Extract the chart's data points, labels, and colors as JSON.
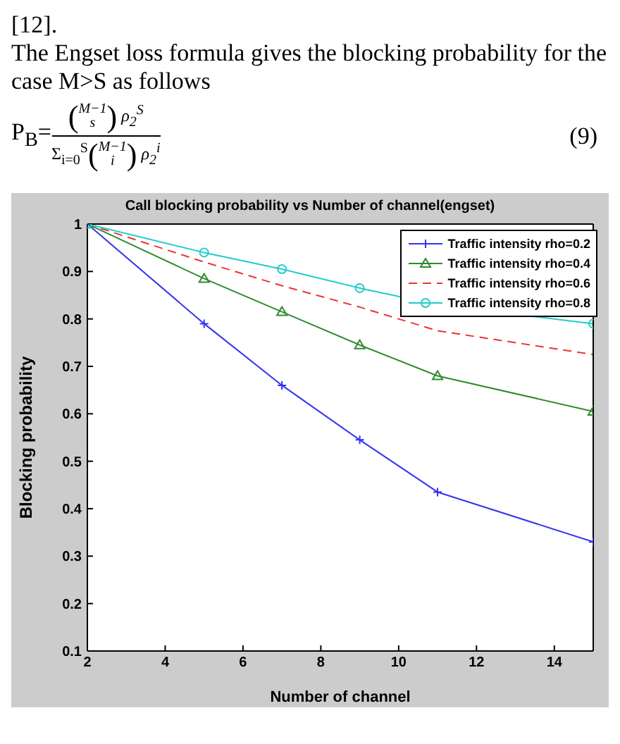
{
  "chart_data": {
    "type": "line",
    "title": "Call blocking probability vs Number of channel(engset)",
    "xlabel": "Number of channel",
    "ylabel": "Blocking probability",
    "annotations": [
      "[12].",
      "The Engset loss formula gives the blocking probability for the case M>S as follows",
      "P$_{B}$=",
      "(",
      "M−1",
      "s",
      ")",
      "ρ$_{2}$$^{S}$",
      "Σ$_{i=0}$$^{S}$",
      "(",
      "M−1",
      "i",
      ")",
      "ρ$_{2}$$^{i}$",
      "(9)"
    ],
    "x": [
      2,
      5,
      7,
      9,
      11,
      15
    ],
    "series": [
      {
        "name": "Traffic intensity rho=0.2",
        "color": "#3333ee",
        "marker": "cross",
        "line_style": "solid",
        "values": [
          1,
          0.79,
          0.66,
          0.545,
          0.435,
          0.33
        ]
      },
      {
        "name": "Traffic intensity rho=0.4",
        "color": "#2e8b2e",
        "marker": "triangle",
        "line_style": "solid",
        "values": [
          1,
          0.885,
          0.815,
          0.745,
          0.68,
          0.605
        ]
      },
      {
        "name": "Traffic intensity rho=0.6",
        "color": "#ee3333",
        "marker": "none",
        "line_style": "dashed",
        "values": [
          1,
          0.92,
          0.87,
          0.825,
          0.775,
          0.725
        ]
      },
      {
        "name": "Traffic intensity rho=0.8",
        "color": "#22cccc",
        "marker": "circle",
        "line_style": "solid",
        "values": [
          1,
          0.94,
          0.905,
          0.865,
          0.83,
          0.79
        ]
      }
    ],
    "xlim": [
      2,
      15
    ],
    "xticks": [
      2,
      4,
      6,
      8,
      10,
      12,
      14
    ],
    "ylim": [
      0.1,
      1
    ],
    "yticks": [
      0.1,
      0.2,
      0.3,
      0.4,
      0.5,
      0.6,
      0.7,
      0.8,
      0.9,
      1
    ],
    "grid": false,
    "legend": "top right"
  }
}
